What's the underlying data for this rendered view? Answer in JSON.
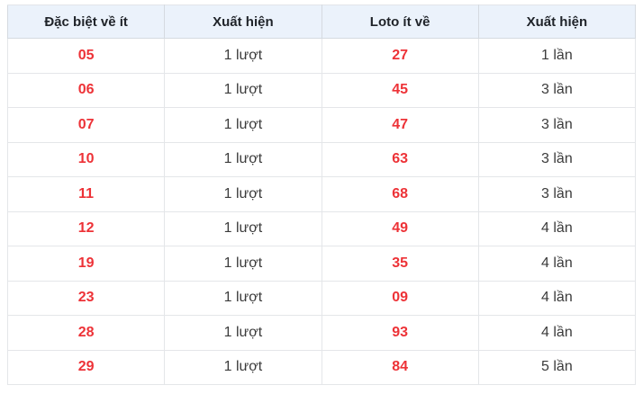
{
  "colors": {
    "header_bg": "#ebf2fb",
    "number_red": "#ed3237",
    "text_dark": "#1f2329",
    "body_text": "#3b3b3b",
    "border": "#e4e6e9",
    "header_border": "#d5dae0",
    "page_bg": "#ffffff"
  },
  "table": {
    "headers": [
      "Đặc biệt về ít",
      "Xuất hiện",
      "Loto ít về",
      "Xuất hiện"
    ],
    "rows": [
      [
        "05",
        "1 lượt",
        "27",
        "1 lần"
      ],
      [
        "06",
        "1 lượt",
        "45",
        "3 lần"
      ],
      [
        "07",
        "1 lượt",
        "47",
        "3 lần"
      ],
      [
        "10",
        "1 lượt",
        "63",
        "3 lần"
      ],
      [
        "11",
        "1 lượt",
        "68",
        "3 lần"
      ],
      [
        "12",
        "1 lượt",
        "49",
        "4 lần"
      ],
      [
        "19",
        "1 lượt",
        "35",
        "4 lần"
      ],
      [
        "23",
        "1 lượt",
        "09",
        "4 lần"
      ],
      [
        "28",
        "1 lượt",
        "93",
        "4 lần"
      ],
      [
        "29",
        "1 lượt",
        "84",
        "5 lần"
      ]
    ]
  }
}
